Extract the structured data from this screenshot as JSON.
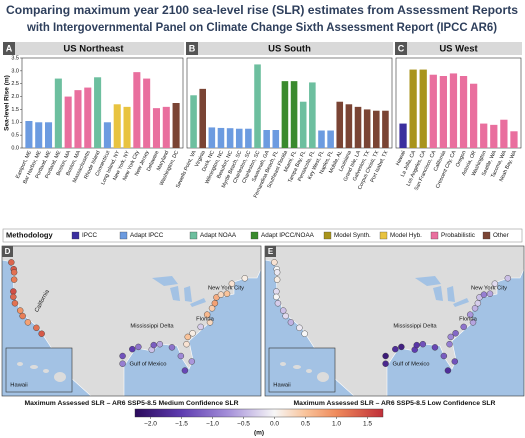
{
  "title": [
    "Comparing maximum year 2100 sea-level rise (SLR) estimates from Assessment Reports",
    "with Intergovernmental Panel on Climate Change Sixth Assessment Report (IPCC AR6)"
  ],
  "legend": {
    "title": "Methodology",
    "items": [
      {
        "name": "IPCC",
        "color": "#3b2f9e"
      },
      {
        "name": "Adapt IPCC",
        "color": "#6c9be0"
      },
      {
        "name": "Adapt NOAA",
        "color": "#6dbf9f"
      },
      {
        "name": "Adapt IPCC/NOAA",
        "color": "#3a8a2e"
      },
      {
        "name": "Model Synth.",
        "color": "#a9941c"
      },
      {
        "name": "Model Hyb.",
        "color": "#e8c340"
      },
      {
        "name": "Probabilistic",
        "color": "#e96f9e"
      },
      {
        "name": "Other",
        "color": "#7a4434"
      }
    ]
  },
  "colorbar": {
    "lim": [
      -2.25,
      1.75
    ],
    "ticks": [
      {
        "value": -2,
        "label": "−2.0"
      },
      {
        "value": -1.5,
        "label": "−1.5"
      },
      {
        "value": -1,
        "label": "−1.0"
      },
      {
        "value": -0.5,
        "label": "−0.5"
      },
      {
        "value": 0,
        "label": "0.0"
      },
      0.5,
      {
        "value": 1,
        "label": "1.0"
      },
      1.5
    ],
    "label": "(m)"
  },
  "chart_data": [
    {
      "type": "bar",
      "panel": "A",
      "title": "US Northeast",
      "ylabel": "Sea-level Rise (m)",
      "ylim": [
        0,
        3.5
      ],
      "yticks": [
        {
          "value": 0,
          "label": "0.0"
        },
        0.5,
        {
          "value": 1,
          "label": "1.0"
        },
        1.5,
        {
          "value": 2,
          "label": "2.0"
        },
        2.5,
        {
          "value": 3,
          "label": "3.0"
        },
        3.5
      ],
      "categories": [
        "Eastport, ME",
        "Bar Harbor, ME",
        "Portland, ME",
        "Portland, ME",
        "Boston, MA",
        "Boston, MA",
        "Massachusetts",
        "Rhode Island",
        "Connecticut",
        "Long Island, NY",
        "New York, NY",
        "New York City",
        "New Jersey",
        "Delaware",
        "Maryland",
        "Washington, DC"
      ],
      "values": [
        1.05,
        1.0,
        1.0,
        2.7,
        2.0,
        2.25,
        2.35,
        2.75,
        1.0,
        1.7,
        1.6,
        2.95,
        2.7,
        1.55,
        1.6,
        1.75
      ],
      "methods": [
        "Adapt IPCC",
        "Adapt IPCC",
        "Adapt IPCC",
        "Adapt NOAA",
        "Probabilistic",
        "Probabilistic",
        "Probabilistic",
        "Adapt NOAA",
        "Adapt IPCC",
        "Model Hyb.",
        "Model Hyb.",
        "Probabilistic",
        "Probabilistic",
        "Probabilistic",
        "Probabilistic",
        "Other"
      ]
    },
    {
      "type": "bar",
      "panel": "B",
      "title": "US South",
      "ylim": [
        0,
        3.5
      ],
      "categories": [
        "Sewells Point, VA",
        "Virginia",
        "Duck, NC",
        "Wilmington, NC",
        "Beaufort, NC",
        "Myrtle Beach, SC",
        "Charleston, SC",
        "Charleston, SC",
        "Savannah, GA",
        "Fernandina Beach, FL",
        "Southeast Florida",
        "Miami, FL",
        "Tampa Bay, FL",
        "Pensacola, FL",
        "Key West, FL",
        "Naples, FL",
        "Mobile, AL",
        "Louisiana",
        "Grand Isle, LA",
        "Galveston, TX",
        "Corpus Christi, TX",
        "Port Isabel, TX"
      ],
      "values": [
        2.05,
        2.3,
        0.8,
        0.78,
        0.77,
        0.75,
        0.75,
        3.25,
        0.7,
        0.7,
        2.6,
        2.6,
        1.8,
        2.55,
        0.68,
        0.68,
        1.8,
        1.7,
        1.6,
        1.5,
        1.45,
        1.45
      ],
      "methods": [
        "Adapt NOAA",
        "Other",
        "Adapt IPCC",
        "Adapt IPCC",
        "Adapt IPCC",
        "Adapt IPCC",
        "Adapt IPCC",
        "Adapt NOAA",
        "Adapt IPCC",
        "Adapt IPCC",
        "Adapt IPCC/NOAA",
        "Adapt IPCC/NOAA",
        "Adapt NOAA",
        "Adapt NOAA",
        "Adapt IPCC",
        "Adapt IPCC",
        "Other",
        "Other",
        "Other",
        "Other",
        "Other",
        "Other"
      ]
    },
    {
      "type": "bar",
      "panel": "C",
      "title": "US West",
      "ylim": [
        0,
        3.5
      ],
      "categories": [
        "Hawaii",
        "La Jolla, CA",
        "Los Angeles, CA",
        "San Francisco, CA",
        "California",
        "Crescent City, CA",
        "Oregon",
        "Astoria, OR",
        "Washington",
        "Seattle, WA",
        "Tacoma, WA",
        "Neah Bay, WA"
      ],
      "values": [
        0.95,
        3.05,
        3.05,
        2.85,
        2.8,
        2.9,
        2.8,
        2.5,
        0.95,
        0.9,
        1.1,
        0.65
      ],
      "methods": [
        "IPCC",
        "Model Synth.",
        "Model Synth.",
        "Probabilistic",
        "Probabilistic",
        "Probabilistic",
        "Probabilistic",
        "Probabilistic",
        "Probabilistic",
        "Probabilistic",
        "Probabilistic",
        "Probabilistic"
      ]
    },
    {
      "type": "map",
      "panel": "D",
      "caption": "Maximum Assessed SLR – AR6 SSP5-8.5 Medium Confidence SLR",
      "annotations": [
        "California",
        "New York City",
        "Mississippi Delta",
        "Florida",
        "Gulf of Mexico",
        "Hawaii"
      ],
      "lon": [
        -124.7,
        -124.1,
        -124.0,
        -124.0,
        -124.2,
        -124.2,
        -123.8,
        -122.5,
        -121.9,
        -120.6,
        -118.5,
        -117.2,
        -97.2,
        -97.2,
        -94.8,
        -93.3,
        -90.0,
        -89.5,
        -88.0,
        -85.0,
        -82.8,
        -81.8,
        -80.1,
        -81.4,
        -81.1,
        -79.9,
        -77.9,
        -75.6,
        -76.3,
        -75.1,
        -74.4,
        -74.0,
        -72.9,
        -71.4,
        -70.2,
        -67.0
      ],
      "lat": [
        48.4,
        46.9,
        46.2,
        44.6,
        42.0,
        40.8,
        39.4,
        37.8,
        36.6,
        35.2,
        34.0,
        32.7,
        26.1,
        27.8,
        29.3,
        29.8,
        29.2,
        30.2,
        30.4,
        29.7,
        27.8,
        24.6,
        26.6,
        30.4,
        32.0,
        32.8,
        34.2,
        35.2,
        36.9,
        38.3,
        39.4,
        40.7,
        41.3,
        41.5,
        43.7,
        44.9
      ],
      "values": [
        1.3,
        1.4,
        1.2,
        1.1,
        1.5,
        1.3,
        1.2,
        0.9,
        1.1,
        0.8,
        1.2,
        1.4,
        -0.9,
        -1.3,
        -1.5,
        -1.0,
        -0.4,
        -1.2,
        -0.6,
        -1.0,
        -0.8,
        -1.4,
        -0.7,
        0.2,
        0.5,
        0.1,
        -0.3,
        0.3,
        0.6,
        0.4,
        0.8,
        0.7,
        0.3,
        0.5,
        0.2,
        0.1
      ]
    },
    {
      "type": "map",
      "panel": "E",
      "caption": "Maximum Assessed SLR – AR6 SSP5-8.5 Low Confidence SLR",
      "annotations": [
        "New York City",
        "Mississippi Delta",
        "Florida",
        "Gulf of Mexico",
        "Hawaii"
      ],
      "lon": [
        -124.7,
        -124.1,
        -124.0,
        -124.0,
        -124.2,
        -124.2,
        -123.8,
        -122.5,
        -121.9,
        -120.6,
        -118.5,
        -117.2,
        -97.2,
        -97.2,
        -94.8,
        -93.3,
        -90.0,
        -89.5,
        -88.0,
        -85.0,
        -82.8,
        -81.8,
        -80.1,
        -81.4,
        -81.1,
        -79.9,
        -77.9,
        -75.6,
        -76.3,
        -75.1,
        -74.4,
        -74.0,
        -72.9,
        -71.4,
        -70.2,
        -67.0
      ],
      "lat": [
        48.4,
        46.9,
        46.2,
        44.6,
        42.0,
        40.8,
        39.4,
        37.8,
        36.6,
        35.2,
        34.0,
        32.7,
        26.1,
        27.8,
        29.3,
        29.8,
        29.2,
        30.2,
        30.4,
        29.7,
        27.8,
        24.6,
        26.6,
        30.4,
        32.0,
        32.8,
        34.2,
        35.2,
        36.9,
        38.3,
        39.4,
        40.7,
        41.3,
        41.5,
        43.7,
        44.9
      ],
      "values": [
        0.2,
        0.0,
        -0.1,
        0.1,
        -0.2,
        0.0,
        -0.3,
        -0.4,
        -0.2,
        -0.5,
        -0.1,
        0.0,
        -1.8,
        -2.0,
        -1.7,
        -1.9,
        -1.5,
        -1.6,
        -1.3,
        -1.4,
        -1.2,
        -1.7,
        -1.3,
        -0.9,
        -0.8,
        -1.1,
        -1.0,
        -0.6,
        -0.7,
        -0.5,
        -0.3,
        -0.4,
        -0.9,
        -0.6,
        -0.2,
        -0.4
      ]
    }
  ]
}
